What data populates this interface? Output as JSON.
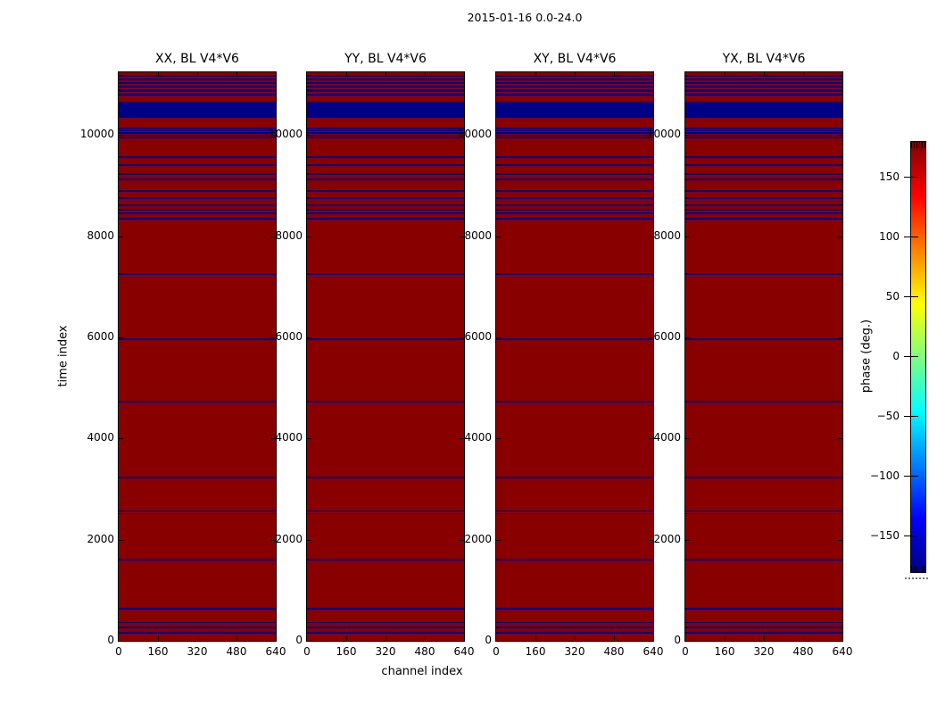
{
  "figure": {
    "title": "2015-01-16 0.0-24.0",
    "xlabel": "channel index",
    "ylabel": "time index",
    "colorbar_label": "phase (deg.)"
  },
  "colors": {
    "phase_high": "#880000",
    "phase_low": "#000085",
    "axis": "#000000",
    "background": "#ffffff"
  },
  "chart_data": {
    "type": "heatmap",
    "title": "2015-01-16 0.0-24.0",
    "xlabel": "channel index",
    "ylabel": "time index",
    "grid": false,
    "panels": [
      {
        "title": "XX, BL V4*V6"
      },
      {
        "title": "YY, BL V4*V6"
      },
      {
        "title": "XY, BL V4*V6"
      },
      {
        "title": "YX, BL V4*V6"
      }
    ],
    "x_range": [
      0,
      640
    ],
    "x_ticks": [
      0,
      160,
      320,
      480,
      640
    ],
    "y_range": [
      0,
      11244
    ],
    "y_ticks": [
      0,
      2000,
      4000,
      6000,
      8000,
      10000
    ],
    "colorbar": {
      "label": "phase (deg.)",
      "range": [
        -180,
        180
      ],
      "ticks": [
        150,
        100,
        50,
        0,
        -50,
        -100,
        -150
      ],
      "colormap": "jet"
    },
    "value_description": "phase (deg.): background ~ +180 (dark red); flagged horizontal bands ~ -180 (dark blue); identical pattern in all four polarization panels, uniform across all channels",
    "background_value": 180,
    "stripe_value": -180,
    "flagged_time_ranges": [
      [
        11156,
        11192
      ],
      [
        11086,
        11121
      ],
      [
        11015,
        11051
      ],
      [
        10945,
        10980
      ],
      [
        10857,
        10901
      ],
      [
        10777,
        10822
      ],
      [
        10336,
        10654
      ],
      [
        10120,
        10146
      ],
      [
        10076,
        10102
      ],
      [
        10032,
        10058
      ],
      [
        9988,
        10014
      ],
      [
        9943,
        9969
      ],
      [
        9550,
        9586
      ],
      [
        9391,
        9427
      ],
      [
        9215,
        9250
      ],
      [
        9109,
        9144
      ],
      [
        8879,
        8915
      ],
      [
        8738,
        8774
      ],
      [
        8597,
        8632
      ],
      [
        8508,
        8544
      ],
      [
        8438,
        8473
      ],
      [
        8332,
        8367
      ],
      [
        7237,
        7273
      ],
      [
        5954,
        5990
      ],
      [
        4718,
        4754
      ],
      [
        3218,
        3254
      ],
      [
        2559,
        2585
      ],
      [
        2502,
        2528
      ],
      [
        1583,
        1619
      ],
      [
        612,
        648
      ],
      [
        352,
        378
      ],
      [
        252,
        278
      ],
      [
        146,
        172
      ]
    ]
  }
}
